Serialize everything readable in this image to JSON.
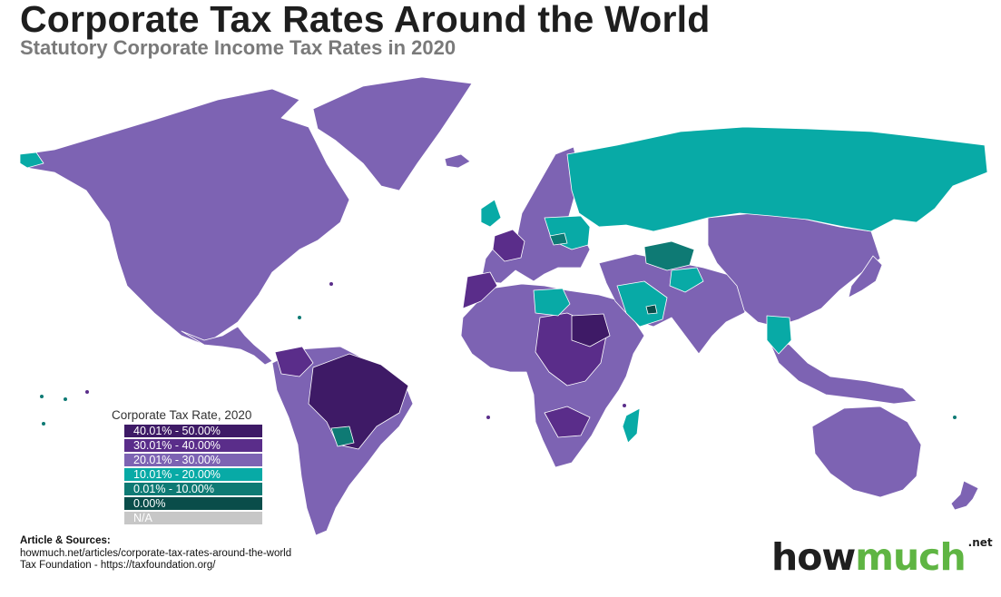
{
  "title": "Corporate Tax Rates Around the World",
  "subtitle": "Statutory Corporate Income Tax Rates in 2020",
  "legend": {
    "title": "Corporate Tax Rate, 2020",
    "items": [
      {
        "label": "40.01% - 50.00%",
        "color": "#3e1a66"
      },
      {
        "label": "30.01% - 40.00%",
        "color": "#5a2d8a"
      },
      {
        "label": "20.01% - 30.00%",
        "color": "#7d63b3"
      },
      {
        "label": "10.01% - 20.00%",
        "color": "#08aaa6"
      },
      {
        "label": "0.01% - 10.00%",
        "color": "#0e7a74"
      },
      {
        "label": "0.00%",
        "color": "#0a4d4a"
      },
      {
        "label": "N/A",
        "color": "#c7c7c7"
      }
    ]
  },
  "sources": {
    "heading": "Article & Sources:",
    "lines": [
      "howmuch.net/articles/corporate-tax-rates-around-the-world",
      "Tax Foundation - https://taxfoundation.org/"
    ]
  },
  "logo": {
    "part1": "how",
    "part2": "much",
    "suffix": ".net"
  }
}
